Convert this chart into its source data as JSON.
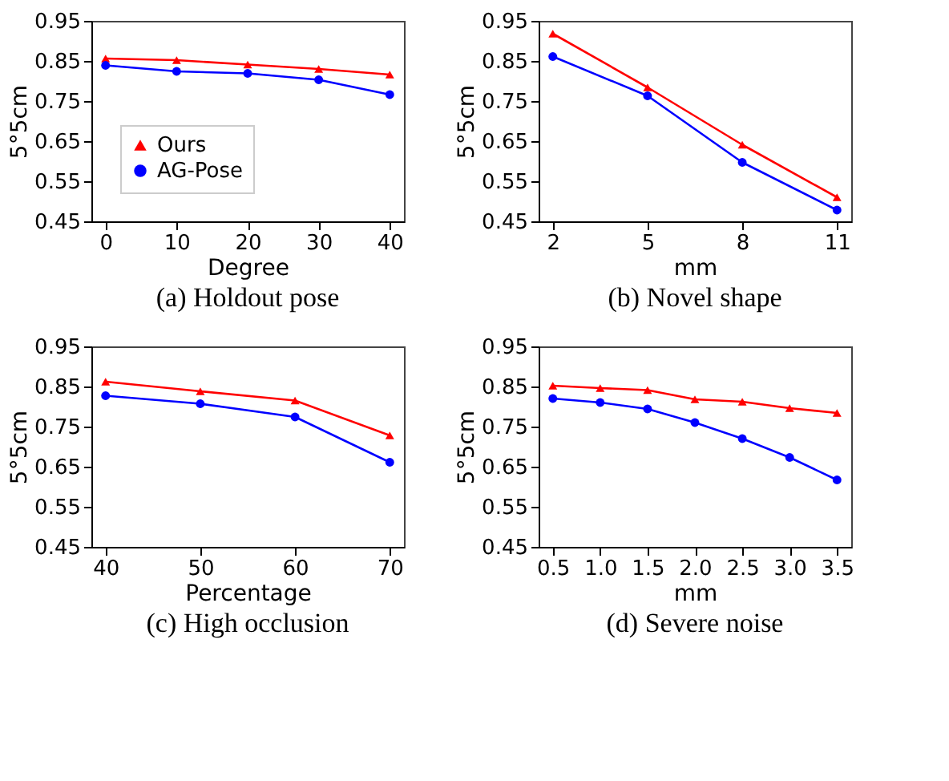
{
  "chart_data": [
    {
      "type": "line",
      "title": "(a) Holdout pose",
      "xlabel": "Degree",
      "ylabel": "5°5cm",
      "x": [
        0,
        10,
        20,
        30,
        40
      ],
      "xlim": [
        -2,
        42
      ],
      "xticks": [
        0,
        10,
        20,
        30,
        40
      ],
      "ylim": [
        0.45,
        0.95
      ],
      "yticks": [
        0.45,
        0.55,
        0.65,
        0.75,
        0.85,
        0.95
      ],
      "grid": false,
      "legend": "bottom left",
      "series": [
        {
          "name": "Ours",
          "color": "#ff0000",
          "marker": "triangle",
          "values": [
            0.856,
            0.852,
            0.841,
            0.83,
            0.816
          ]
        },
        {
          "name": "AG-Pose",
          "color": "#0000ff",
          "marker": "circle",
          "values": [
            0.839,
            0.824,
            0.819,
            0.803,
            0.766
          ]
        }
      ]
    },
    {
      "type": "line",
      "title": "(b) Novel shape",
      "xlabel": "mm",
      "ylabel": "5°5cm",
      "x": [
        2,
        5,
        8,
        11
      ],
      "xlim": [
        1.55,
        11.45
      ],
      "xticks": [
        2,
        5,
        8,
        11
      ],
      "ylim": [
        0.45,
        0.95
      ],
      "yticks": [
        0.45,
        0.55,
        0.65,
        0.75,
        0.85,
        0.95
      ],
      "grid": false,
      "legend": false,
      "series": [
        {
          "color": "#ff0000",
          "marker": "triangle",
          "values": [
            0.918,
            0.784,
            0.641,
            0.51
          ]
        },
        {
          "color": "#0000ff",
          "marker": "circle",
          "values": [
            0.861,
            0.763,
            0.597,
            0.478
          ]
        }
      ]
    },
    {
      "type": "line",
      "title": "(c) High occlusion",
      "xlabel": "Percentage",
      "ylabel": "5°5cm",
      "x": [
        40,
        50,
        60,
        70
      ],
      "xlim": [
        38.5,
        71.5
      ],
      "xticks": [
        40,
        50,
        60,
        70
      ],
      "ylim": [
        0.45,
        0.95
      ],
      "yticks": [
        0.45,
        0.55,
        0.65,
        0.75,
        0.85,
        0.95
      ],
      "grid": false,
      "legend": false,
      "series": [
        {
          "color": "#ff0000",
          "marker": "triangle",
          "values": [
            0.862,
            0.838,
            0.815,
            0.728
          ]
        },
        {
          "color": "#0000ff",
          "marker": "circle",
          "values": [
            0.827,
            0.807,
            0.774,
            0.661
          ]
        }
      ]
    },
    {
      "type": "line",
      "title": "(d) Severe noise",
      "xlabel": "mm",
      "ylabel": "5°5cm",
      "x": [
        0.5,
        1.0,
        1.5,
        2.0,
        2.5,
        3.0,
        3.5
      ],
      "xlim": [
        0.35,
        3.65
      ],
      "xticks": [
        0.5,
        {
          "value": 1,
          "label": "1.0"
        },
        1.5,
        {
          "value": 2,
          "label": "2.0"
        },
        2.5,
        {
          "value": 3,
          "label": "3.0"
        },
        3.5
      ],
      "ylim": [
        0.45,
        0.95
      ],
      "yticks": [
        0.45,
        0.55,
        0.65,
        0.75,
        0.85,
        0.95
      ],
      "grid": false,
      "legend": false,
      "series": [
        {
          "color": "#ff0000",
          "marker": "triangle",
          "values": [
            0.852,
            0.846,
            0.841,
            0.818,
            0.812,
            0.796,
            0.784
          ]
        },
        {
          "color": "#0000ff",
          "marker": "circle",
          "values": [
            0.82,
            0.81,
            0.794,
            0.76,
            0.72,
            0.673,
            0.617
          ]
        }
      ]
    }
  ]
}
